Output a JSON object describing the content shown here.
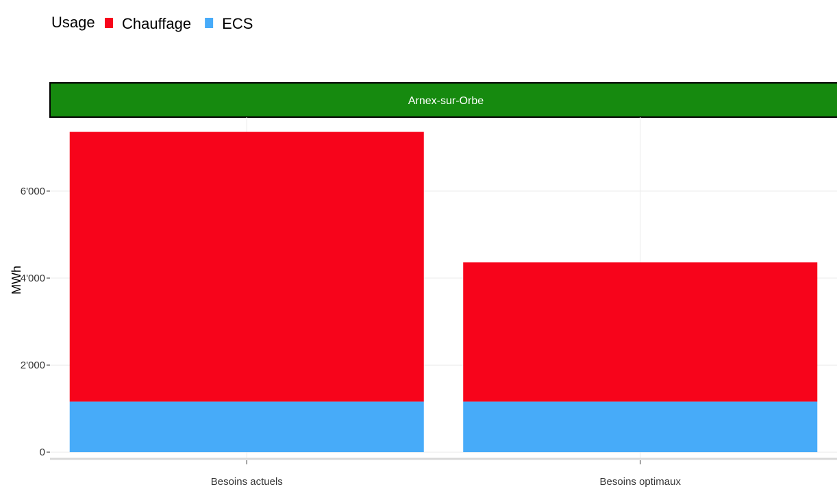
{
  "chart_data": {
    "type": "bar",
    "stacked": true,
    "facet": "Arnex-sur-Orbe",
    "categories": [
      "Besoins actuels",
      "Besoins optimaux"
    ],
    "series": [
      {
        "name": "ECS",
        "values": [
          1160,
          1160
        ],
        "color": "#47ABF9"
      },
      {
        "name": "Chauffage",
        "values": [
          6200,
          3200
        ],
        "color": "#F7041B"
      }
    ],
    "legend": {
      "title": "Usage",
      "order": [
        "Chauffage",
        "ECS"
      ],
      "position": "top-left"
    },
    "xlabel": "",
    "ylabel": "MWh",
    "ylim": [
      -140,
      7700
    ],
    "yticks": [
      0,
      2000,
      4000,
      6000
    ],
    "ytick_labels": [
      "0",
      "2'000",
      "4'000",
      "6'000"
    ],
    "grid": true,
    "colors": {
      "facet_strip": "#168A0F",
      "grid": "#EBEBEB",
      "axis": "#D9D9D9"
    }
  }
}
